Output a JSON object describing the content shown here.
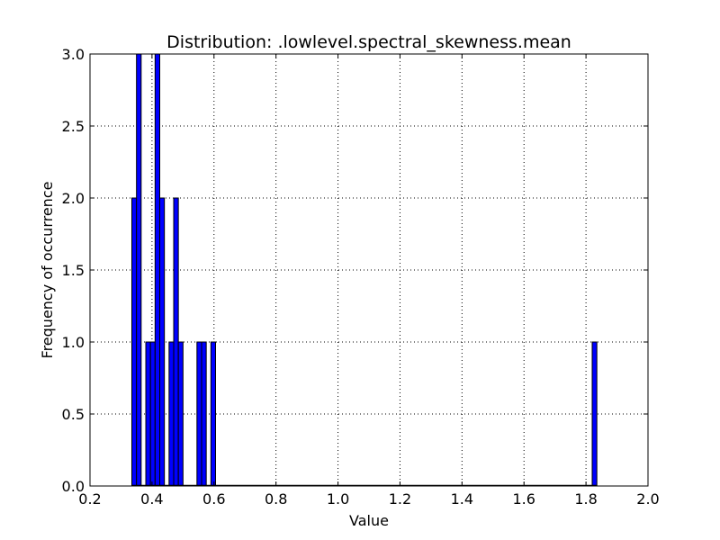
{
  "chart_data": {
    "type": "bar",
    "title": "Distribution: .lowlevel.spectral_skewness.mean",
    "xlabel": "Value",
    "ylabel": "Frequency of occurrence",
    "xlim": [
      0.2,
      2.0
    ],
    "ylim": [
      0.0,
      3.0
    ],
    "xticks": [
      "0.2",
      "0.4",
      "0.6",
      "0.8",
      "1.0",
      "1.2",
      "1.4",
      "1.6",
      "1.8",
      "2.0"
    ],
    "yticks": [
      "0.0",
      "0.5",
      "1.0",
      "1.5",
      "2.0",
      "2.5",
      "3.0"
    ],
    "grid": true,
    "bin_width": 0.015,
    "bins": [
      {
        "x": 0.335,
        "count": 2
      },
      {
        "x": 0.35,
        "count": 3
      },
      {
        "x": 0.38,
        "count": 1
      },
      {
        "x": 0.395,
        "count": 1
      },
      {
        "x": 0.41,
        "count": 3
      },
      {
        "x": 0.425,
        "count": 2
      },
      {
        "x": 0.455,
        "count": 1
      },
      {
        "x": 0.47,
        "count": 2
      },
      {
        "x": 0.485,
        "count": 1
      },
      {
        "x": 0.545,
        "count": 1
      },
      {
        "x": 0.56,
        "count": 1
      },
      {
        "x": 0.59,
        "count": 1
      },
      {
        "x": 1.82,
        "count": 1
      }
    ],
    "bar_color": "#0000ff"
  }
}
